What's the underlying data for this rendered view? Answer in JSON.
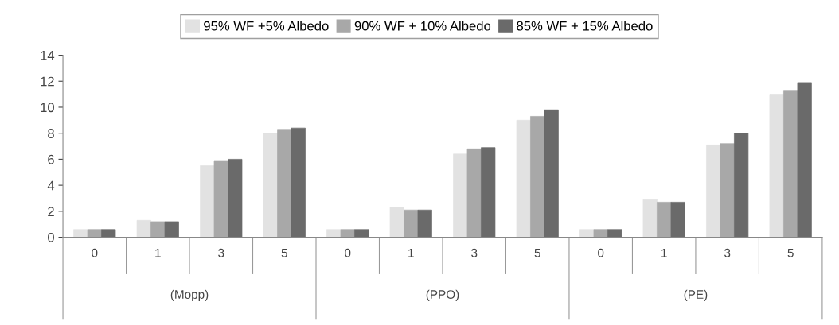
{
  "chart_data": {
    "type": "bar",
    "categories": [
      "0",
      "1",
      "3",
      "5",
      "0",
      "1",
      "3",
      "5",
      "0",
      "1",
      "3",
      "5"
    ],
    "series": [
      {
        "name": "95% WF +5% Albedo",
        "color": "#e2e2e2",
        "values": [
          0.6,
          1.3,
          5.5,
          8.0,
          0.6,
          2.3,
          6.4,
          9.0,
          0.6,
          2.9,
          7.1,
          11.0
        ]
      },
      {
        "name": "90% WF + 10% Albedo",
        "color": "#a8a8a8",
        "values": [
          0.6,
          1.2,
          5.9,
          8.3,
          0.6,
          2.1,
          6.8,
          9.3,
          0.6,
          2.7,
          7.2,
          11.3
        ]
      },
      {
        "name": "85% WF + 15% Albedo",
        "color": "#6a6a6a",
        "values": [
          0.6,
          1.2,
          6.0,
          8.4,
          0.6,
          2.1,
          6.9,
          9.8,
          0.6,
          2.7,
          8.0,
          11.9
        ]
      }
    ],
    "annotations": [
      "(Mopp)",
      "(PPO)",
      "(PE)"
    ],
    "ylim": [
      0,
      14
    ],
    "yticks": [
      0,
      2,
      4,
      6,
      8,
      10,
      12,
      14
    ],
    "grid": false,
    "legend": "top"
  }
}
